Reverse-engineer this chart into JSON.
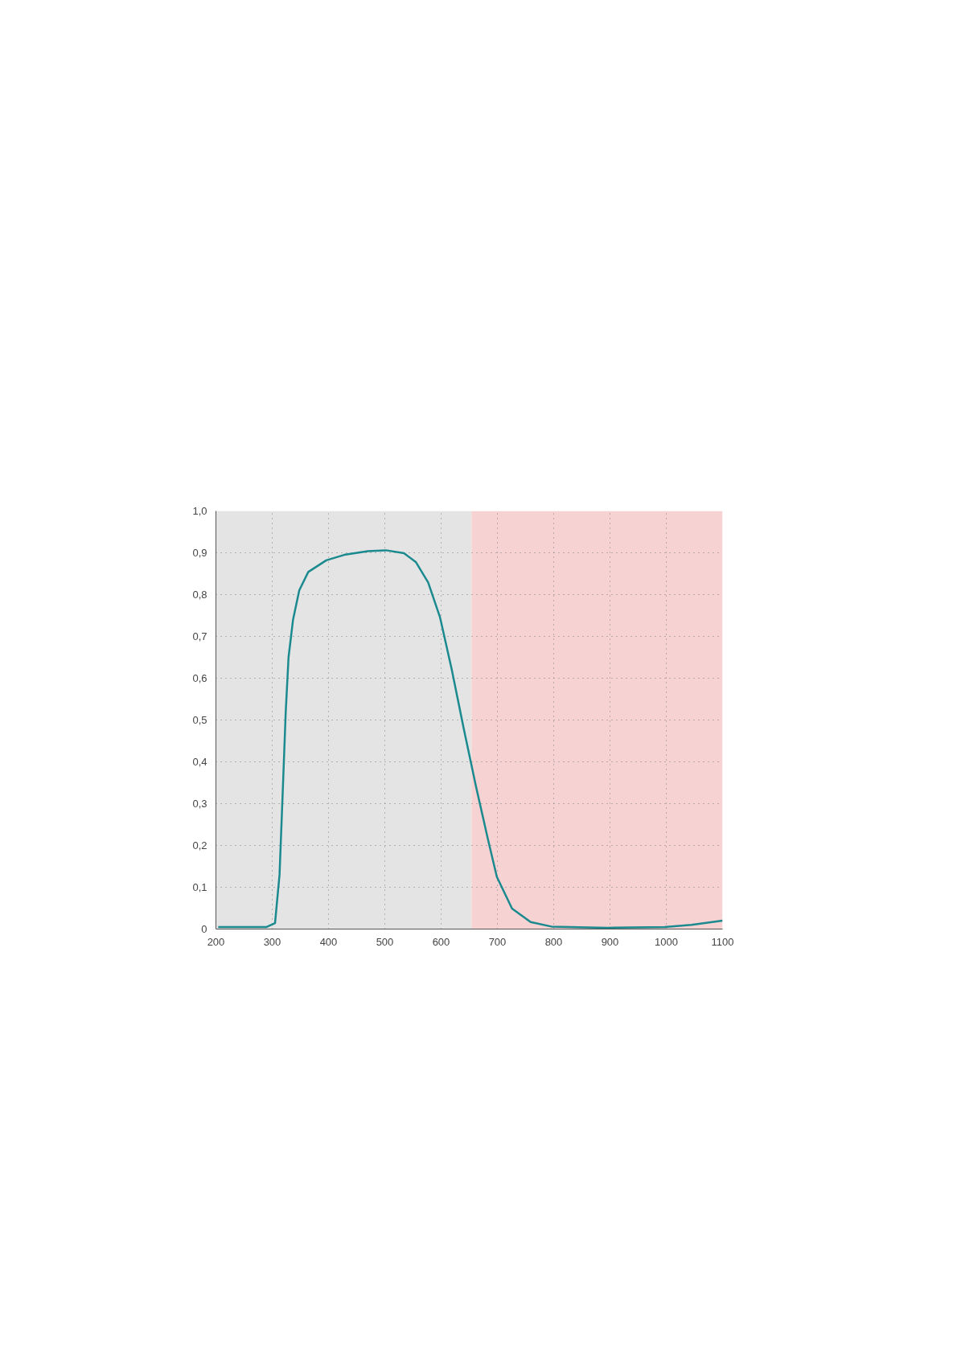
{
  "chart_data": {
    "type": "line",
    "x": [
      204,
      290,
      305,
      313,
      319,
      324,
      329,
      337,
      348,
      364,
      396,
      428,
      470,
      502,
      534,
      555,
      577,
      598,
      619,
      640,
      662,
      683,
      699,
      726,
      759,
      796,
      896,
      997,
      1045,
      1100
    ],
    "series": [
      {
        "color": "#1a8a8f",
        "values": [
          0.005,
          0.005,
          0.014,
          0.13,
          0.34,
          0.52,
          0.65,
          0.74,
          0.81,
          0.854,
          0.882,
          0.895,
          0.904,
          0.906,
          0.899,
          0.878,
          0.829,
          0.746,
          0.62,
          0.481,
          0.341,
          0.216,
          0.125,
          0.049,
          0.017,
          0.006,
          0.003,
          0.005,
          0.01,
          0.02
        ]
      }
    ],
    "xlim": [
      200,
      1100
    ],
    "ylim": [
      0,
      1
    ],
    "xticks": [
      200,
      300,
      400,
      500,
      600,
      700,
      800,
      900,
      1000,
      1100
    ],
    "yticks": [
      0,
      {
        "value": 0.1,
        "label": "0,1"
      },
      {
        "value": 0.2,
        "label": "0,2"
      },
      {
        "value": 0.3,
        "label": "0,3"
      },
      {
        "value": 0.4,
        "label": "0,4"
      },
      {
        "value": 0.5,
        "label": "0,5"
      },
      {
        "value": 0.6,
        "label": "0,6"
      },
      {
        "value": 0.7,
        "label": "0,7"
      },
      {
        "value": 0.8,
        "label": "0,8"
      },
      {
        "value": 0.9,
        "label": "0,9"
      },
      {
        "value": 1.0,
        "label": "1,0"
      }
    ],
    "bands": [
      {
        "axis": "x",
        "from": 200,
        "to": 654,
        "color": "#e4e4e4"
      },
      {
        "axis": "x",
        "from": 654,
        "to": 1100,
        "color": "#f6d2d3"
      }
    ],
    "grid": true,
    "line_style": "solid"
  }
}
